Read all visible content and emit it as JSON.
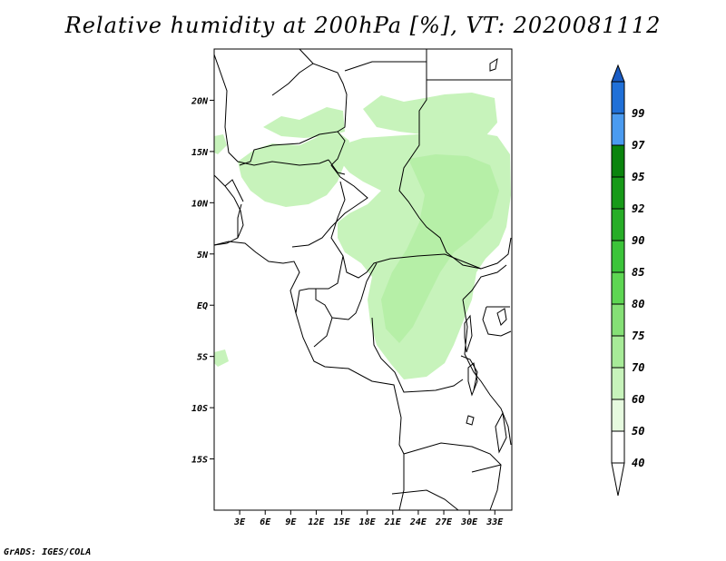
{
  "title": "Relative humidity at 200hPa [%], VT: 2020081112",
  "credit": "GrADS: IGES/COLA",
  "map": {
    "lon_range": [
      0,
      35
    ],
    "lat_range": [
      -20,
      25
    ],
    "lat_ticks": [
      {
        "value": 20,
        "label": "20N"
      },
      {
        "value": 15,
        "label": "15N"
      },
      {
        "value": 10,
        "label": "10N"
      },
      {
        "value": 5,
        "label": "5N"
      },
      {
        "value": 0,
        "label": "EQ"
      },
      {
        "value": -5,
        "label": "5S"
      },
      {
        "value": -10,
        "label": "10S"
      },
      {
        "value": -15,
        "label": "15S"
      }
    ],
    "lon_ticks": [
      {
        "value": 3,
        "label": "3E"
      },
      {
        "value": 6,
        "label": "6E"
      },
      {
        "value": 9,
        "label": "9E"
      },
      {
        "value": 12,
        "label": "12E"
      },
      {
        "value": 15,
        "label": "15E"
      },
      {
        "value": 18,
        "label": "18E"
      },
      {
        "value": 21,
        "label": "21E"
      },
      {
        "value": 24,
        "label": "24E"
      },
      {
        "value": 27,
        "label": "27E"
      },
      {
        "value": 30,
        "label": "30E"
      },
      {
        "value": 33,
        "label": "33E"
      }
    ]
  },
  "colorbar": {
    "levels": [
      {
        "label": "40",
        "color": "#ffffff"
      },
      {
        "label": "50",
        "color": "#e6fadf"
      },
      {
        "label": "60",
        "color": "#c7f3bb"
      },
      {
        "label": "70",
        "color": "#a7eb98"
      },
      {
        "label": "75",
        "color": "#85e076"
      },
      {
        "label": "80",
        "color": "#5ed653"
      },
      {
        "label": "85",
        "color": "#3cc43a"
      },
      {
        "label": "90",
        "color": "#27ad27"
      },
      {
        "label": "92",
        "color": "#179a18"
      },
      {
        "label": "95",
        "color": "#0a840d"
      },
      {
        "label": "97",
        "color": "#4b9bf0"
      },
      {
        "label": "99",
        "color": "#2070d8"
      }
    ],
    "top_color": "#1a5cc4"
  }
}
